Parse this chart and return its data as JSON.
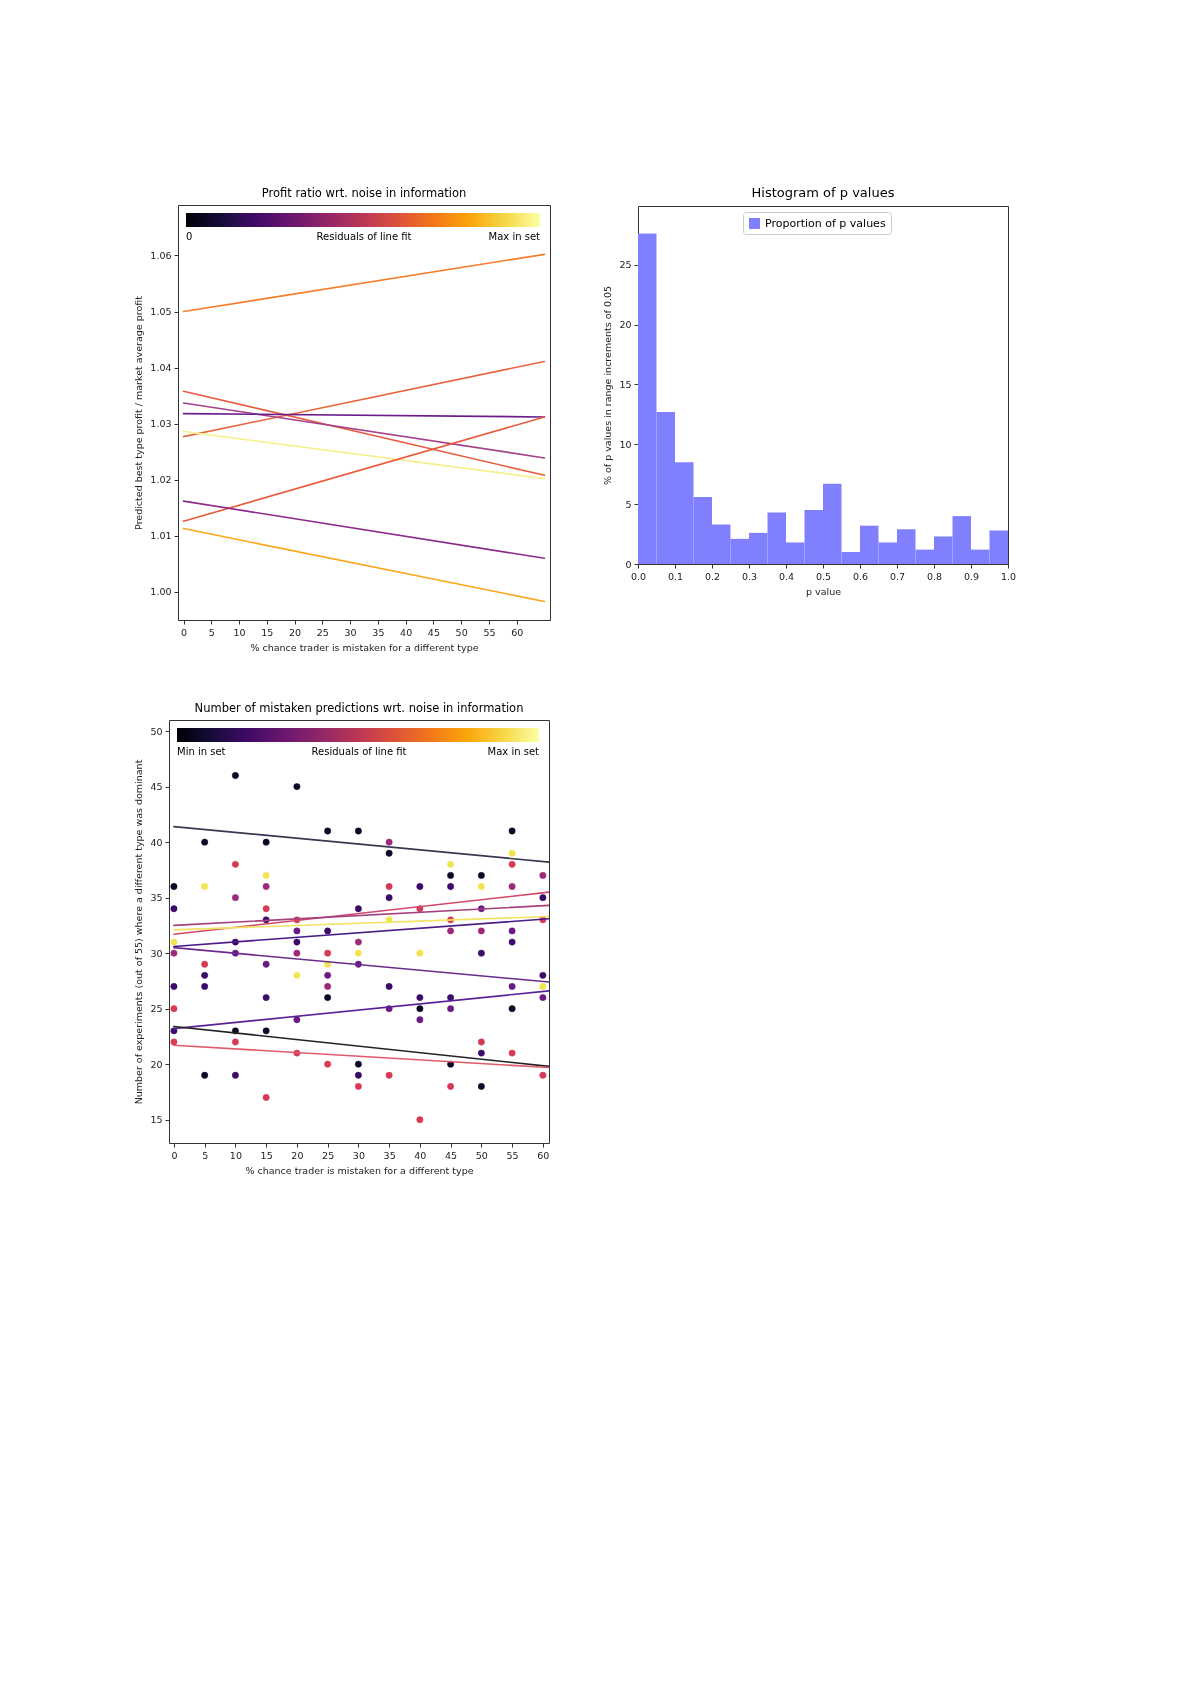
{
  "chart_data": [
    {
      "type": "line",
      "title": "Profit ratio wrt. noise in information",
      "xlabel": "% chance trader is mistaken for a different type",
      "ylabel": "Predicted best type profit / market average profit",
      "clabel": "Residuals of line fit",
      "annotations": [
        "0",
        "Max in set"
      ],
      "xlim": [
        -1,
        66
      ],
      "ylim": [
        0.995,
        1.069
      ],
      "xticks": [
        0,
        5,
        10,
        15,
        20,
        25,
        30,
        35,
        40,
        45,
        50,
        55,
        60
      ],
      "yticks": [
        {
          "value": 1,
          "label": "1.00"
        },
        1.01,
        1.02,
        1.03,
        1.04,
        1.05,
        1.06
      ],
      "grid": false,
      "series": [
        {
          "color": "#f57d2a",
          "x": [
            0,
            65
          ],
          "values": [
            1.05,
            1.0602
          ]
        },
        {
          "color": "#e8643c",
          "x": [
            0,
            65
          ],
          "values": [
            1.0277,
            1.0411
          ]
        },
        {
          "color": "#e65d40",
          "x": [
            0,
            65
          ],
          "values": [
            1.0358,
            1.0208
          ]
        },
        {
          "color": "#a4428a",
          "x": [
            0,
            65
          ],
          "values": [
            1.0337,
            1.0239
          ]
        },
        {
          "color": "#6a1c8a",
          "x": [
            0,
            65
          ],
          "values": [
            1.0318,
            1.0312
          ]
        },
        {
          "color": "#f6f08a",
          "x": [
            0,
            65
          ],
          "values": [
            1.0286,
            1.0202
          ]
        },
        {
          "color": "#e9583a",
          "x": [
            0,
            65
          ],
          "values": [
            1.0126,
            1.0312
          ]
        },
        {
          "color": "#8a2a8a",
          "x": [
            0,
            65
          ],
          "values": [
            1.0162,
            1.006
          ]
        },
        {
          "color": "#fca51a",
          "x": [
            0,
            65
          ],
          "values": [
            1.0113,
            0.9983
          ]
        }
      ]
    },
    {
      "type": "histogram",
      "title": "Histogram of p values",
      "xlabel": "p value",
      "ylabel": "% of p values in range increments of 0.05",
      "xlim": [
        0,
        1
      ],
      "ylim": [
        0,
        29.9
      ],
      "xticks": [
        {
          "value": 0,
          "label": "0.0"
        },
        0.1,
        0.2,
        0.3,
        0.4,
        0.5,
        0.6,
        0.7,
        0.8,
        0.9,
        {
          "value": 1,
          "label": "1.0"
        }
      ],
      "yticks": [
        0,
        5,
        10,
        15,
        20,
        25
      ],
      "grid": false,
      "legend": "top",
      "bins": [
        0,
        0.05,
        0.1,
        0.15,
        0.2,
        0.25,
        0.3,
        0.35,
        0.4,
        0.45,
        0.5,
        0.55,
        0.6,
        0.65,
        0.7,
        0.75,
        0.8,
        0.85,
        0.9,
        0.95,
        1
      ],
      "series": [
        {
          "name": "Proportion of p values",
          "color": "#8080ff",
          "values": [
            27.6,
            12.7,
            8.5,
            5.6,
            3.3,
            2.1,
            2.6,
            4.3,
            1.8,
            4.5,
            6.7,
            1.0,
            3.2,
            1.8,
            2.9,
            1.2,
            2.3,
            4.0,
            1.2,
            2.8
          ]
        }
      ]
    },
    {
      "type": "scatter",
      "title": "Number of mistaken predictions wrt. noise in information",
      "xlabel": "% chance trader is mistaken for a different type",
      "ylabel": "Number of experiments (out of 55) where a different type was dominant",
      "clabel": "Residuals of line fit",
      "annotations": [
        "Min in set",
        "Max in set"
      ],
      "xlim": [
        -0.8,
        61
      ],
      "ylim": [
        12.9,
        51
      ],
      "xticks": [
        0,
        5,
        10,
        15,
        20,
        25,
        30,
        35,
        40,
        45,
        50,
        55,
        60
      ],
      "yticks": [
        15,
        20,
        25,
        30,
        35,
        40,
        45,
        50
      ],
      "grid": false,
      "series": [
        {
          "color": "#0c0826",
          "x": [
            0,
            5,
            5,
            10,
            10,
            15,
            15,
            20,
            25,
            25,
            30,
            30,
            35,
            40,
            45,
            45,
            50,
            50,
            55,
            55
          ],
          "values": [
            36,
            40,
            19,
            46,
            23,
            40,
            23,
            45,
            41,
            26,
            41,
            20,
            39,
            25,
            37,
            20,
            37,
            18,
            41,
            25
          ]
        },
        {
          "color": "#3a0b6a",
          "x": [
            0,
            0,
            0,
            5,
            5,
            10,
            10,
            15,
            15,
            20,
            25,
            30,
            30,
            35,
            35,
            40,
            40,
            45,
            45,
            50,
            50,
            55,
            60,
            60
          ],
          "values": [
            34,
            27,
            23,
            28,
            27,
            31,
            19,
            33,
            26,
            31,
            32,
            34,
            19,
            35,
            27,
            36,
            26,
            36,
            26,
            30,
            21,
            31,
            35,
            28
          ]
        },
        {
          "color": "#6a1a85",
          "x": [
            10,
            15,
            20,
            20,
            25,
            30,
            35,
            40,
            45,
            50,
            55,
            55,
            60
          ],
          "values": [
            30,
            29,
            32,
            24,
            28,
            29,
            25,
            24,
            25,
            34,
            32,
            27,
            26
          ]
        },
        {
          "color": "#9c2a78",
          "x": [
            0,
            10,
            15,
            20,
            25,
            30,
            35,
            45,
            50,
            55,
            60
          ],
          "values": [
            30,
            35,
            36,
            30,
            27,
            31,
            40,
            32,
            32,
            36,
            37
          ]
        },
        {
          "color": "#d63a55",
          "x": [
            0,
            0,
            5,
            10,
            10,
            15,
            15,
            20,
            20,
            25,
            25,
            30,
            35,
            35,
            40,
            40,
            45,
            45,
            50,
            55,
            55,
            60,
            60
          ],
          "values": [
            25,
            22,
            29,
            38,
            22,
            34,
            17,
            33,
            21,
            30,
            20,
            18,
            36,
            19,
            34,
            15,
            33,
            18,
            22,
            38,
            21,
            33,
            19
          ]
        },
        {
          "color": "#f2e450",
          "x": [
            0,
            5,
            15,
            20,
            25,
            30,
            35,
            40,
            45,
            50,
            55,
            60
          ],
          "values": [
            31,
            36,
            37,
            28,
            29,
            30,
            33,
            30,
            38,
            36,
            39,
            27
          ]
        },
        {
          "type": "line",
          "color": "#3b3552",
          "x": [
            0,
            61
          ],
          "values": [
            41.4,
            38.2
          ]
        },
        {
          "type": "line",
          "color": "#d2476a",
          "x": [
            0,
            61
          ],
          "values": [
            31.7,
            35.5
          ]
        },
        {
          "type": "line",
          "color": "#a3417e",
          "x": [
            0,
            61
          ],
          "values": [
            32.5,
            34.3
          ]
        },
        {
          "type": "line",
          "color": "#f2e361",
          "x": [
            0,
            61
          ],
          "values": [
            32.1,
            33.3
          ]
        },
        {
          "type": "line",
          "color": "#4b1c86",
          "x": [
            0,
            61
          ],
          "values": [
            30.6,
            33.1
          ]
        },
        {
          "type": "line",
          "color": "#6c2a8e",
          "x": [
            0,
            61
          ],
          "values": [
            30.5,
            27.4
          ]
        },
        {
          "type": "line",
          "color": "#5a2196",
          "x": [
            0,
            61
          ],
          "values": [
            23.2,
            26.6
          ]
        },
        {
          "type": "line",
          "color": "#222222",
          "x": [
            0,
            61
          ],
          "values": [
            23.4,
            19.8
          ]
        },
        {
          "type": "line",
          "color": "#e05a6a",
          "x": [
            0,
            61
          ],
          "values": [
            21.7,
            19.7
          ]
        }
      ]
    }
  ]
}
